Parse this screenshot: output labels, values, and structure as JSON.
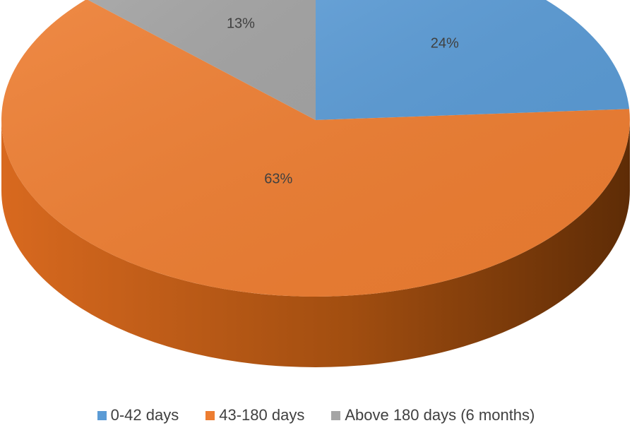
{
  "chart_data": {
    "type": "pie",
    "style": "3d",
    "title": "",
    "slices": [
      {
        "label": "0-42 days",
        "value": 24,
        "display": "24%",
        "color": "#5B9BD5"
      },
      {
        "label": "43-180 days",
        "value": 63,
        "display": "63%",
        "color": "#ED7D31"
      },
      {
        "label": "Above 180 days (6 months)",
        "value": 13,
        "display": "13%",
        "color": "#A5A5A5"
      }
    ],
    "legend_position": "bottom"
  }
}
